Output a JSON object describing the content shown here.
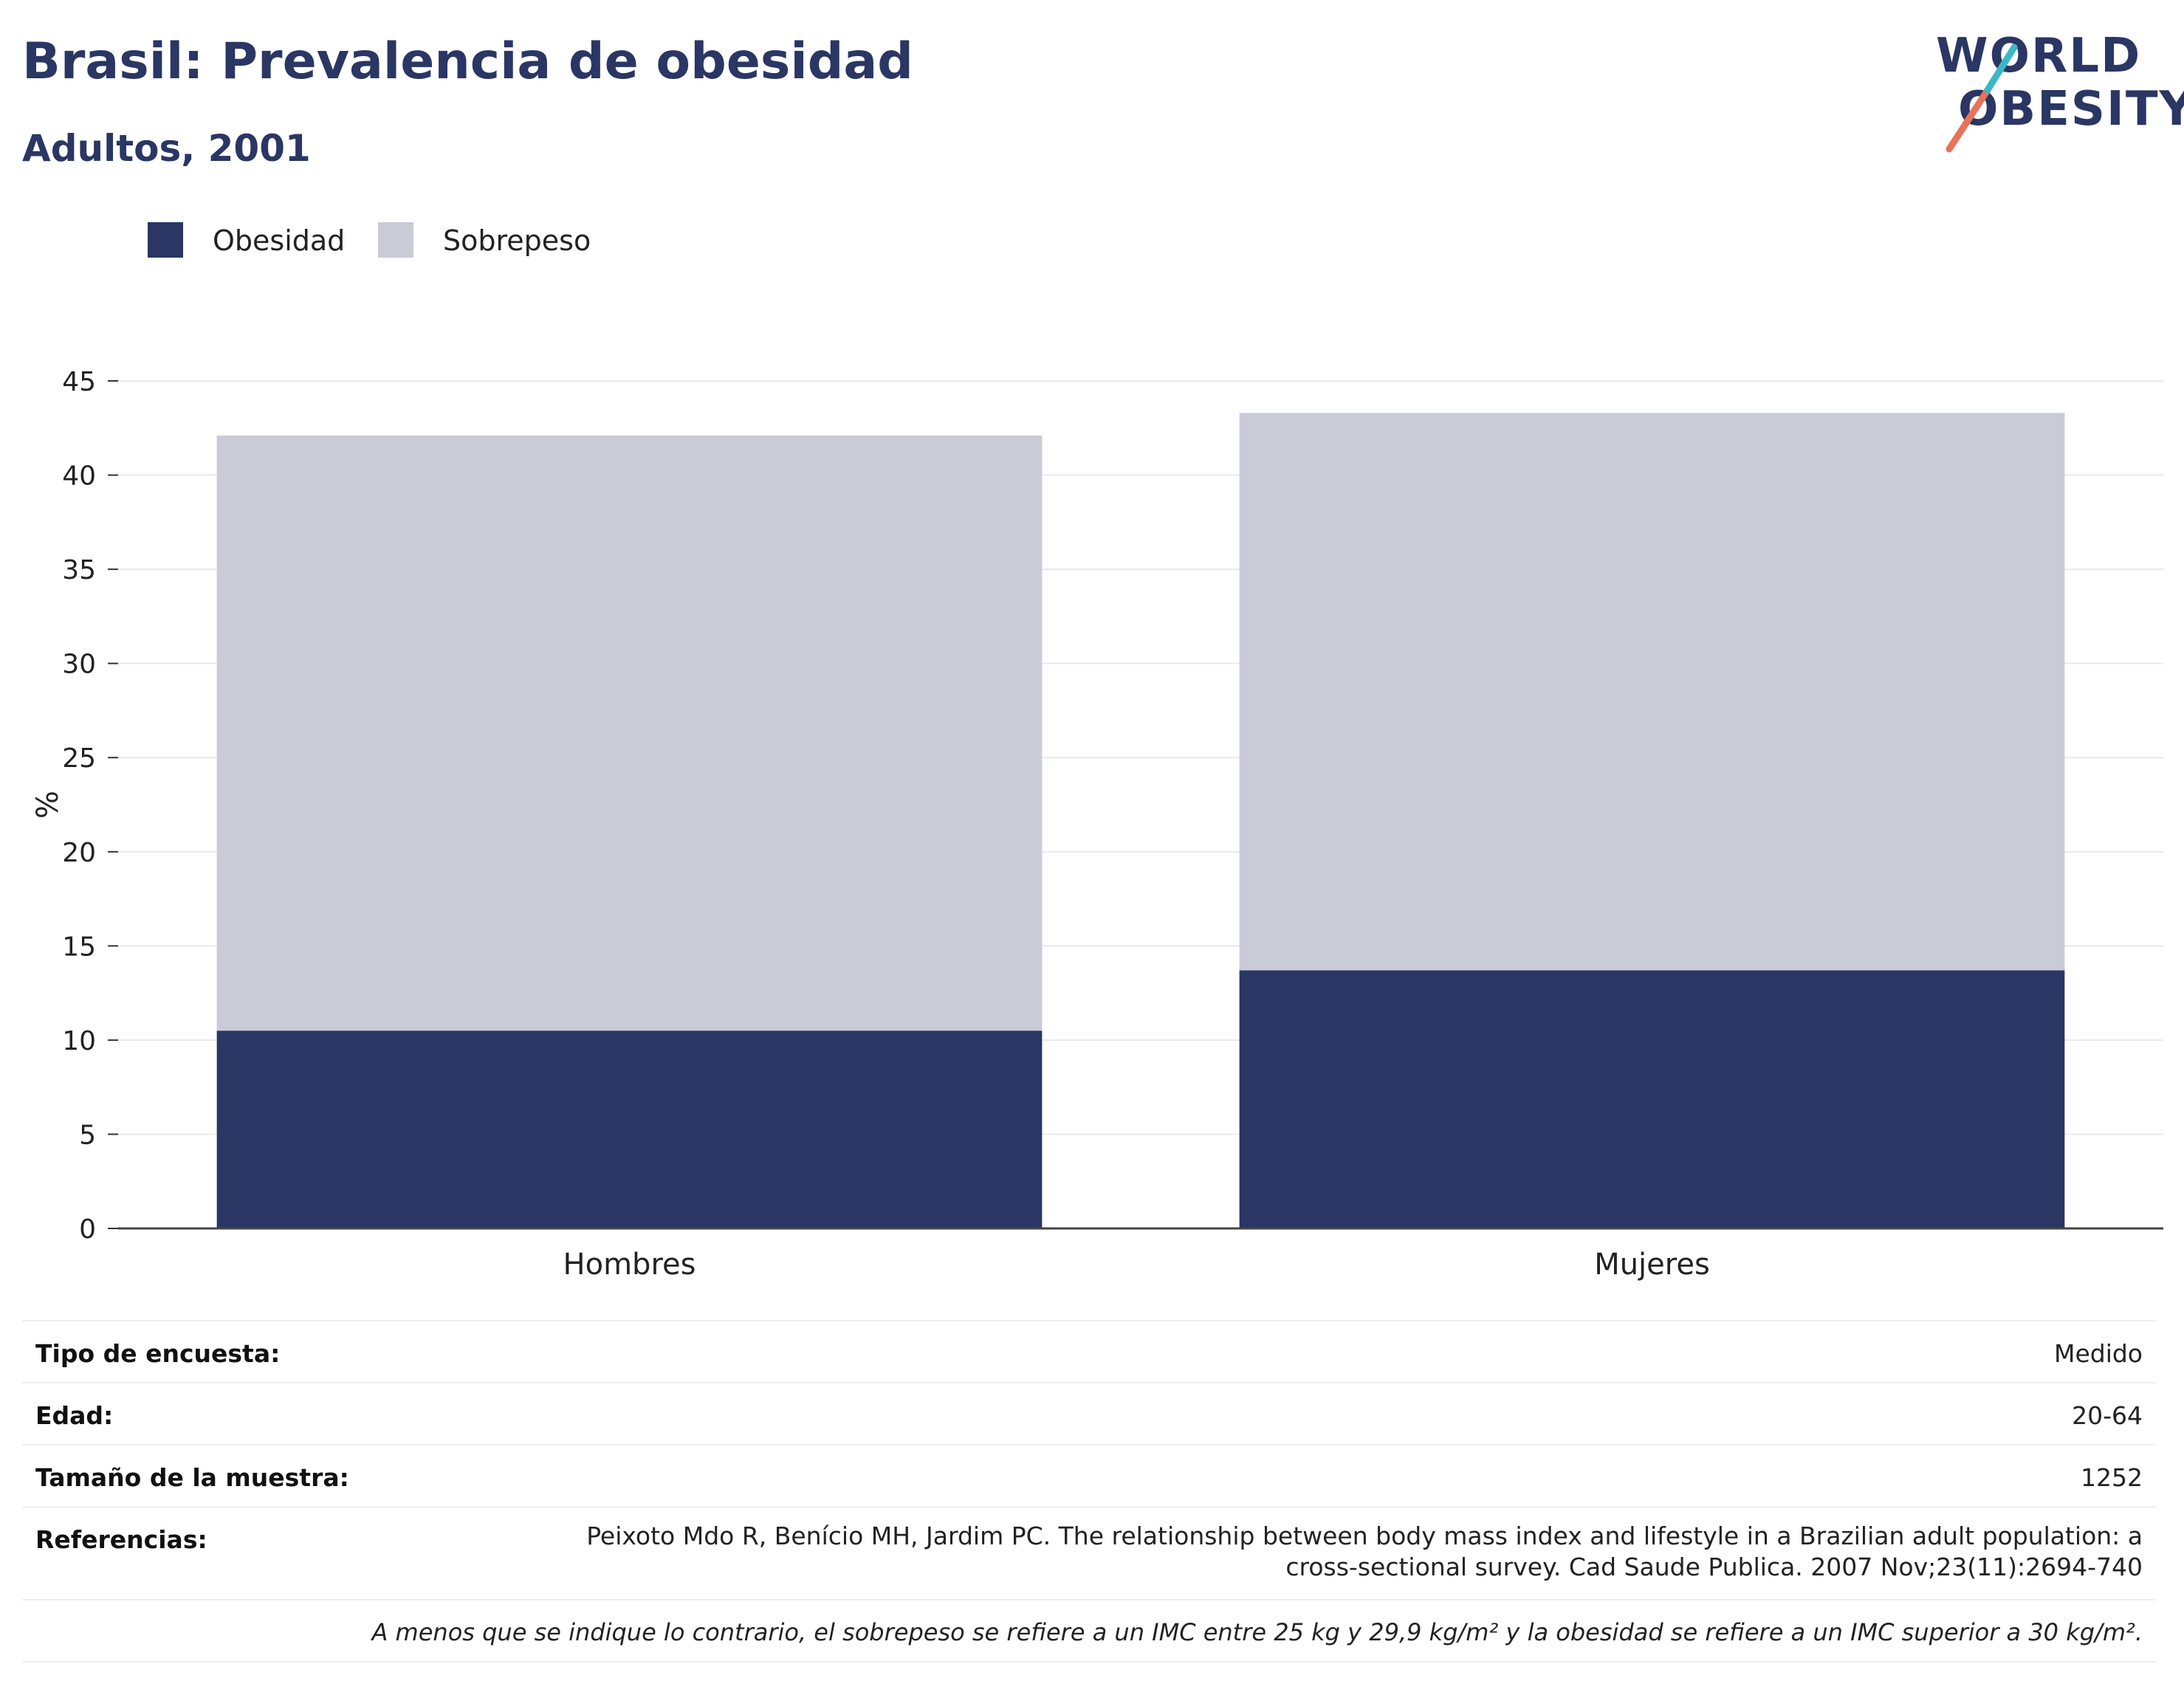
{
  "header": {
    "title": "Brasil: Prevalencia de obesidad",
    "subtitle": "Adultos, 2001"
  },
  "logo": {
    "line1": "WORLD",
    "line2": "OBESITY",
    "accent_colors": [
      "#e8735a",
      "#3cb8c4"
    ]
  },
  "legend": [
    {
      "label": "Obesidad",
      "color": "#2a3663"
    },
    {
      "label": "Sobrepeso",
      "color": "#c9cbd7"
    }
  ],
  "chart_data": {
    "type": "bar",
    "stacked": true,
    "categories": [
      "Hombres",
      "Mujeres"
    ],
    "series": [
      {
        "name": "Obesidad",
        "values": [
          10.5,
          13.7
        ],
        "color": "#2a3663"
      },
      {
        "name": "Sobrepeso",
        "values": [
          31.6,
          29.6
        ],
        "color": "#c9cbd7"
      }
    ],
    "ylabel": "%",
    "ylim": [
      0,
      45
    ],
    "yticks": [
      "0",
      "5",
      "10",
      "15",
      "20",
      "25",
      "30",
      "35",
      "40",
      "45"
    ],
    "grid": true,
    "legend_position": "top-left"
  },
  "meta": {
    "survey_label": "Tipo de encuesta:",
    "survey_value": "Medido",
    "age_label": "Edad:",
    "age_value": "20-64",
    "sample_label": "Tamaño de la muestra:",
    "sample_value": "1252",
    "ref_label": "Referencias:",
    "ref_value": "Peixoto Mdo R, Benício MH, Jardim PC. The relationship between body mass index and lifestyle in a Brazilian adult population: a cross-sectional survey. Cad Saude Publica. 2007 Nov;23(11):2694-740",
    "note": "A menos que se indique lo contrario, el sobrepeso se refiere a un IMC entre 25 kg y 29,9 kg/m² y la obesidad se refiere a un IMC superior a 30 kg/m²."
  }
}
